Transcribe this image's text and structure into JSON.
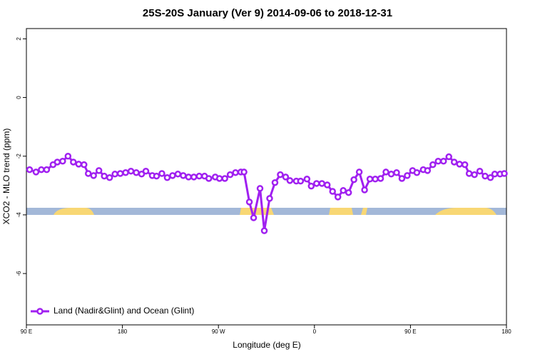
{
  "chart_data": {
    "type": "line",
    "title": "25S-20S January (Ver 9)   2014-09-06 to 2018-12-31",
    "xlabel": "Longitude (deg E)",
    "ylabel": "XCO2 - MLO trend (ppm)",
    "x": [
      93,
      99,
      104,
      109,
      115,
      119,
      124,
      129,
      134,
      139,
      144,
      148,
      153,
      158,
      163,
      168,
      173,
      178,
      183,
      188,
      193,
      198,
      202,
      208,
      212,
      217,
      222,
      227,
      232,
      237,
      242,
      247,
      252,
      257,
      261,
      267,
      271,
      276,
      281,
      286,
      291,
      294,
      299,
      303,
      309,
      313,
      318,
      323,
      328,
      333,
      337,
      343,
      347,
      353,
      357,
      362,
      367,
      372,
      377,
      382,
      387,
      392,
      397,
      402,
      407,
      412,
      417,
      422,
      427,
      432,
      437,
      442,
      447,
      452,
      456,
      462,
      466,
      471,
      476,
      481,
      486,
      491,
      496,
      501,
      505,
      510,
      515,
      520,
      525,
      529,
      534,
      538
    ],
    "series": [
      {
        "name": "Land (Nadir&Glint) and Ocean (Glint)",
        "color": "#a020f0",
        "values": [
          -2.46,
          -2.54,
          -2.46,
          -2.46,
          -2.29,
          -2.2,
          -2.17,
          -2.0,
          -2.2,
          -2.27,
          -2.29,
          -2.59,
          -2.66,
          -2.49,
          -2.68,
          -2.73,
          -2.61,
          -2.59,
          -2.56,
          -2.51,
          -2.56,
          -2.61,
          -2.51,
          -2.66,
          -2.68,
          -2.59,
          -2.73,
          -2.66,
          -2.61,
          -2.66,
          -2.71,
          -2.71,
          -2.68,
          -2.68,
          -2.76,
          -2.71,
          -2.76,
          -2.76,
          -2.63,
          -2.56,
          -2.54,
          -2.54,
          -3.56,
          -4.1,
          -3.1,
          -4.54,
          -3.44,
          -2.9,
          -2.63,
          -2.71,
          -2.83,
          -2.85,
          -2.85,
          -2.78,
          -3.02,
          -2.93,
          -2.93,
          -2.98,
          -3.2,
          -3.39,
          -3.17,
          -3.24,
          -2.8,
          -2.54,
          -3.15,
          -2.78,
          -2.78,
          -2.76,
          -2.54,
          -2.61,
          -2.56,
          -2.76,
          -2.66,
          -2.49,
          -2.56,
          -2.46,
          -2.49,
          -2.29,
          -2.17,
          -2.17,
          -2.02,
          -2.2,
          -2.27,
          -2.29,
          -2.59,
          -2.63,
          -2.51,
          -2.68,
          -2.73,
          -2.61,
          -2.61,
          -2.59
        ]
      }
    ],
    "xlim": [
      90,
      540
    ],
    "xticks": [
      {
        "value": 90,
        "label": "90 E"
      },
      {
        "value": 180,
        "label": "180"
      },
      {
        "value": 270,
        "label": "90 W"
      },
      {
        "value": 360,
        "label": "0"
      },
      {
        "value": 450,
        "label": "90 E"
      },
      {
        "value": 540,
        "label": "180"
      }
    ],
    "ylim": [
      -7.75,
      2.35
    ],
    "yticks": [
      -6,
      -4,
      -2,
      0,
      2
    ],
    "legend": "bottom-left"
  }
}
